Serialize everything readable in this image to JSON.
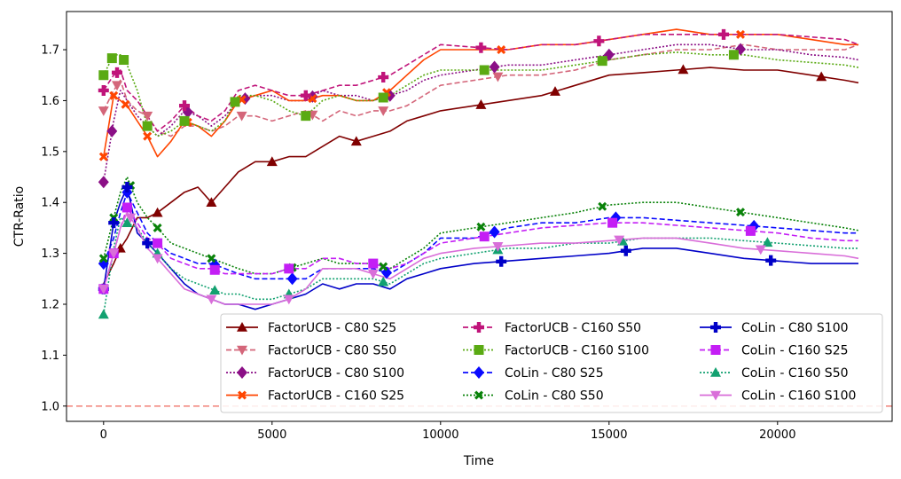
{
  "chart_data": {
    "type": "line",
    "title": "",
    "xlabel": "Time",
    "ylabel": "CTR-Ratio",
    "xlim": [
      -1100,
      23400
    ],
    "ylim": [
      0.97,
      1.775
    ],
    "xticks": [
      0,
      5000,
      10000,
      15000,
      20000
    ],
    "yticks": [
      1.0,
      1.1,
      1.2,
      1.3,
      1.4,
      1.5,
      1.6,
      1.7
    ],
    "xtick_labels": [
      "0",
      "5000",
      "10000",
      "15000",
      "20000"
    ],
    "ytick_labels": [
      "1.0",
      "1.1",
      "1.2",
      "1.3",
      "1.4",
      "1.5",
      "1.6",
      "1.7"
    ],
    "grid": false,
    "legend_position": "lower-right",
    "legend_columns": 3,
    "reference_line": {
      "y": 1.0,
      "color": "#f28b82",
      "style": "dashed"
    },
    "series": [
      {
        "name": "FactorUCB - C80 S25",
        "color": "#800000",
        "dash": "solid",
        "marker": "triangle-up",
        "x": [
          0,
          300,
          500,
          700,
          1000,
          1300,
          1600,
          2000,
          2400,
          2800,
          3200,
          3600,
          4000,
          4500,
          5000,
          5500,
          6000,
          6500,
          7000,
          7500,
          8000,
          8500,
          9000,
          9500,
          10000,
          11000,
          12000,
          13000,
          14000,
          15000,
          16000,
          17000,
          18000,
          19000,
          20000,
          21000,
          22000,
          22400
        ],
        "y": [
          1.24,
          1.28,
          1.31,
          1.33,
          1.37,
          1.37,
          1.38,
          1.4,
          1.42,
          1.43,
          1.4,
          1.43,
          1.46,
          1.48,
          1.48,
          1.49,
          1.49,
          1.51,
          1.53,
          1.52,
          1.53,
          1.54,
          1.56,
          1.57,
          1.58,
          1.59,
          1.6,
          1.61,
          1.63,
          1.65,
          1.655,
          1.66,
          1.665,
          1.66,
          1.66,
          1.65,
          1.64,
          1.635
        ],
        "marker_x": [
          500,
          1600,
          3200,
          5000,
          7500,
          11200,
          13400,
          17200,
          21300
        ]
      },
      {
        "name": "FactorUCB - C80 S50",
        "color": "#d4667a",
        "dash": "dashed",
        "marker": "triangle-down",
        "x": [
          0,
          300,
          500,
          700,
          1000,
          1300,
          1600,
          2000,
          2400,
          2800,
          3200,
          3600,
          4000,
          4500,
          5000,
          5500,
          6000,
          6500,
          7000,
          7500,
          8000,
          8500,
          9000,
          9500,
          10000,
          11000,
          12000,
          13000,
          14000,
          15000,
          16000,
          17000,
          18000,
          19000,
          20000,
          21000,
          22000,
          22400
        ],
        "y": [
          1.58,
          1.62,
          1.64,
          1.6,
          1.58,
          1.57,
          1.54,
          1.53,
          1.55,
          1.55,
          1.54,
          1.55,
          1.57,
          1.57,
          1.56,
          1.57,
          1.58,
          1.56,
          1.58,
          1.57,
          1.58,
          1.58,
          1.59,
          1.61,
          1.63,
          1.64,
          1.65,
          1.65,
          1.66,
          1.68,
          1.69,
          1.7,
          1.7,
          1.71,
          1.7,
          1.7,
          1.7,
          1.71
        ],
        "marker_x": [
          0,
          400,
          1300,
          4100,
          6200,
          8300,
          11700
        ]
      },
      {
        "name": "FactorUCB - C80 S100",
        "color": "#8b0f86",
        "dash": "dotted",
        "marker": "diamond",
        "x": [
          0,
          300,
          500,
          700,
          1000,
          1300,
          1600,
          2000,
          2400,
          2800,
          3200,
          3600,
          4000,
          4500,
          5000,
          5500,
          6000,
          6500,
          7000,
          7500,
          8000,
          8500,
          9000,
          9500,
          10000,
          11000,
          12000,
          13000,
          14000,
          15000,
          16000,
          17000,
          18000,
          19000,
          20000,
          21000,
          22000,
          22400
        ],
        "y": [
          1.44,
          1.56,
          1.62,
          1.6,
          1.57,
          1.55,
          1.53,
          1.55,
          1.58,
          1.57,
          1.55,
          1.57,
          1.6,
          1.61,
          1.61,
          1.6,
          1.6,
          1.62,
          1.61,
          1.61,
          1.6,
          1.61,
          1.62,
          1.64,
          1.65,
          1.66,
          1.67,
          1.67,
          1.68,
          1.69,
          1.7,
          1.71,
          1.71,
          1.7,
          1.7,
          1.69,
          1.685,
          1.68
        ],
        "marker_x": [
          0,
          250,
          2500,
          4200,
          6200,
          8500,
          11600,
          15000,
          18900
        ]
      },
      {
        "name": "FactorUCB - C160 S25",
        "color": "#ff4500",
        "dash": "solid",
        "marker": "x",
        "x": [
          0,
          300,
          500,
          700,
          1000,
          1300,
          1600,
          2000,
          2400,
          2800,
          3200,
          3600,
          4000,
          4500,
          5000,
          5500,
          6000,
          6500,
          7000,
          7500,
          8000,
          8500,
          9000,
          9500,
          10000,
          11000,
          12000,
          13000,
          14000,
          15000,
          16000,
          17000,
          18000,
          19000,
          20000,
          21000,
          22000,
          22400
        ],
        "y": [
          1.49,
          1.61,
          1.6,
          1.59,
          1.56,
          1.53,
          1.49,
          1.52,
          1.56,
          1.55,
          1.53,
          1.56,
          1.6,
          1.61,
          1.62,
          1.6,
          1.6,
          1.61,
          1.61,
          1.6,
          1.6,
          1.62,
          1.65,
          1.68,
          1.7,
          1.7,
          1.7,
          1.71,
          1.71,
          1.72,
          1.73,
          1.74,
          1.73,
          1.73,
          1.73,
          1.72,
          1.71,
          1.71
        ],
        "marker_x": [
          0,
          300,
          650,
          1300,
          2500,
          4100,
          6200,
          8400,
          11800,
          18900
        ]
      },
      {
        "name": "FactorUCB - C160 S50",
        "color": "#c0147a",
        "dash": "dashed",
        "marker": "plus",
        "x": [
          0,
          300,
          500,
          700,
          1000,
          1300,
          1600,
          2000,
          2400,
          2800,
          3200,
          3600,
          4000,
          4500,
          5000,
          5500,
          6000,
          6500,
          7000,
          7500,
          8000,
          8500,
          9000,
          9500,
          10000,
          11000,
          12000,
          13000,
          14000,
          15000,
          16000,
          17000,
          18000,
          19000,
          20000,
          21000,
          22000,
          22400
        ],
        "y": [
          1.62,
          1.65,
          1.66,
          1.62,
          1.6,
          1.57,
          1.54,
          1.56,
          1.59,
          1.57,
          1.56,
          1.58,
          1.62,
          1.63,
          1.62,
          1.61,
          1.61,
          1.62,
          1.63,
          1.63,
          1.64,
          1.65,
          1.67,
          1.69,
          1.71,
          1.705,
          1.7,
          1.71,
          1.71,
          1.72,
          1.73,
          1.73,
          1.73,
          1.73,
          1.73,
          1.725,
          1.72,
          1.71
        ],
        "marker_x": [
          0,
          400,
          2400,
          6000,
          8300,
          11200,
          14700,
          18400
        ]
      },
      {
        "name": "FactorUCB - C160 S100",
        "color": "#5aaa13",
        "dash": "dotted",
        "marker": "square",
        "x": [
          0,
          300,
          500,
          700,
          1000,
          1300,
          1600,
          2000,
          2400,
          2800,
          3200,
          3600,
          4000,
          4500,
          5000,
          5500,
          6000,
          6500,
          7000,
          7500,
          8000,
          8500,
          9000,
          9500,
          10000,
          11000,
          12000,
          13000,
          14000,
          15000,
          16000,
          17000,
          18000,
          19000,
          20000,
          21000,
          22000,
          22400
        ],
        "y": [
          1.65,
          1.69,
          1.69,
          1.67,
          1.62,
          1.55,
          1.53,
          1.54,
          1.56,
          1.55,
          1.54,
          1.56,
          1.61,
          1.61,
          1.6,
          1.58,
          1.57,
          1.6,
          1.61,
          1.6,
          1.6,
          1.61,
          1.63,
          1.65,
          1.66,
          1.66,
          1.66,
          1.66,
          1.67,
          1.68,
          1.69,
          1.695,
          1.69,
          1.69,
          1.68,
          1.675,
          1.67,
          1.665
        ],
        "marker_x": [
          0,
          250,
          600,
          1300,
          2400,
          3900,
          6000,
          8300,
          11300,
          14800,
          18700
        ]
      },
      {
        "name": "CoLin - C80 S25",
        "color": "#0a0aff",
        "dash": "dashed",
        "marker": "diamond",
        "x": [
          0,
          300,
          500,
          700,
          1000,
          1300,
          1600,
          2000,
          2400,
          2800,
          3200,
          3600,
          4000,
          4500,
          5000,
          5500,
          6000,
          6500,
          7000,
          7500,
          8000,
          8500,
          9000,
          9500,
          10000,
          11000,
          12000,
          13000,
          14000,
          15000,
          16000,
          17000,
          18000,
          19000,
          20000,
          21000,
          22000,
          22400
        ],
        "y": [
          1.28,
          1.33,
          1.38,
          1.42,
          1.38,
          1.34,
          1.32,
          1.3,
          1.29,
          1.28,
          1.28,
          1.27,
          1.26,
          1.25,
          1.25,
          1.25,
          1.25,
          1.27,
          1.27,
          1.27,
          1.27,
          1.26,
          1.28,
          1.3,
          1.33,
          1.33,
          1.35,
          1.36,
          1.36,
          1.37,
          1.37,
          1.365,
          1.36,
          1.355,
          1.35,
          1.345,
          1.34,
          1.34
        ],
        "marker_x": [
          0,
          700,
          3300,
          5600,
          8400,
          11600,
          15200,
          19300
        ]
      },
      {
        "name": "CoLin - C80 S50",
        "color": "#098209",
        "dash": "dotted",
        "marker": "x",
        "x": [
          0,
          300,
          500,
          700,
          1000,
          1300,
          1600,
          2000,
          2400,
          2800,
          3200,
          3600,
          4000,
          4500,
          5000,
          5500,
          6000,
          6500,
          7000,
          7500,
          8000,
          8500,
          9000,
          9500,
          10000,
          11000,
          12000,
          13000,
          14000,
          15000,
          16000,
          17000,
          18000,
          19000,
          20000,
          21000,
          22000,
          22400
        ],
        "y": [
          1.29,
          1.37,
          1.42,
          1.45,
          1.4,
          1.37,
          1.35,
          1.32,
          1.31,
          1.3,
          1.29,
          1.28,
          1.27,
          1.26,
          1.26,
          1.27,
          1.28,
          1.29,
          1.28,
          1.28,
          1.28,
          1.27,
          1.29,
          1.31,
          1.34,
          1.35,
          1.36,
          1.37,
          1.38,
          1.395,
          1.4,
          1.4,
          1.39,
          1.38,
          1.37,
          1.36,
          1.35,
          1.345
        ],
        "marker_x": [
          0,
          300,
          800,
          1600,
          3200,
          5600,
          8300,
          11200,
          14800,
          18900
        ]
      },
      {
        "name": "CoLin - C80 S100",
        "color": "#0000c8",
        "dash": "solid",
        "marker": "plus",
        "x": [
          0,
          300,
          500,
          700,
          1000,
          1300,
          1600,
          2000,
          2400,
          2800,
          3200,
          3600,
          4000,
          4500,
          5000,
          5500,
          6000,
          6500,
          7000,
          7500,
          8000,
          8500,
          9000,
          9500,
          10000,
          11000,
          12000,
          13000,
          14000,
          15000,
          16000,
          17000,
          18000,
          19000,
          20000,
          21000,
          22000,
          22400
        ],
        "y": [
          1.23,
          1.36,
          1.4,
          1.43,
          1.34,
          1.32,
          1.3,
          1.27,
          1.24,
          1.22,
          1.21,
          1.2,
          1.2,
          1.19,
          1.2,
          1.21,
          1.22,
          1.24,
          1.23,
          1.24,
          1.24,
          1.23,
          1.25,
          1.26,
          1.27,
          1.28,
          1.285,
          1.29,
          1.295,
          1.3,
          1.31,
          1.31,
          1.3,
          1.29,
          1.285,
          1.28,
          1.28,
          1.28
        ],
        "marker_x": [
          0,
          300,
          700,
          1300,
          11800,
          15500,
          19800
        ]
      },
      {
        "name": "CoLin - C160 S25",
        "color": "#c41ef5",
        "dash": "dashed",
        "marker": "square",
        "x": [
          0,
          300,
          500,
          700,
          1000,
          1300,
          1600,
          2000,
          2400,
          2800,
          3200,
          3600,
          4000,
          4500,
          5000,
          5500,
          6000,
          6500,
          7000,
          7500,
          8000,
          8500,
          9000,
          9500,
          10000,
          11000,
          12000,
          13000,
          14000,
          15000,
          16000,
          17000,
          18000,
          19000,
          20000,
          21000,
          22000,
          22400
        ],
        "y": [
          1.23,
          1.3,
          1.35,
          1.39,
          1.36,
          1.33,
          1.32,
          1.29,
          1.28,
          1.27,
          1.27,
          1.26,
          1.26,
          1.26,
          1.26,
          1.27,
          1.27,
          1.29,
          1.29,
          1.28,
          1.28,
          1.27,
          1.28,
          1.3,
          1.32,
          1.33,
          1.34,
          1.35,
          1.355,
          1.36,
          1.36,
          1.355,
          1.35,
          1.345,
          1.34,
          1.33,
          1.325,
          1.325
        ],
        "marker_x": [
          0,
          300,
          700,
          1600,
          3300,
          5500,
          8000,
          11300,
          15100,
          19200
        ]
      },
      {
        "name": "CoLin - C160 S50",
        "color": "#12a170",
        "dash": "dotted",
        "marker": "triangle-up",
        "x": [
          0,
          300,
          500,
          700,
          1000,
          1300,
          1600,
          2000,
          2400,
          2800,
          3200,
          3600,
          4000,
          4500,
          5000,
          5500,
          6000,
          6500,
          7000,
          7500,
          8000,
          8500,
          9000,
          9500,
          10000,
          11000,
          12000,
          13000,
          14000,
          15000,
          16000,
          17000,
          18000,
          19000,
          20000,
          21000,
          22000,
          22400
        ],
        "y": [
          1.18,
          1.31,
          1.37,
          1.36,
          1.35,
          1.32,
          1.3,
          1.27,
          1.25,
          1.24,
          1.23,
          1.22,
          1.22,
          1.21,
          1.21,
          1.22,
          1.23,
          1.25,
          1.25,
          1.25,
          1.25,
          1.24,
          1.26,
          1.28,
          1.29,
          1.3,
          1.31,
          1.31,
          1.32,
          1.32,
          1.33,
          1.33,
          1.33,
          1.325,
          1.32,
          1.315,
          1.31,
          1.31
        ],
        "marker_x": [
          0,
          700,
          1600,
          3300,
          5500,
          8300,
          11700,
          15400,
          19700
        ]
      },
      {
        "name": "CoLin - C160 S100",
        "color": "#d96ed9",
        "dash": "solid",
        "marker": "triangle-down",
        "x": [
          0,
          300,
          500,
          700,
          1000,
          1300,
          1600,
          2000,
          2400,
          2800,
          3200,
          3600,
          4000,
          4500,
          5000,
          5500,
          6000,
          6500,
          7000,
          7500,
          8000,
          8500,
          9000,
          9500,
          10000,
          11000,
          12000,
          13000,
          14000,
          15000,
          16000,
          17000,
          18000,
          19000,
          20000,
          21000,
          22000,
          22400
        ],
        "y": [
          1.23,
          1.3,
          1.35,
          1.38,
          1.35,
          1.31,
          1.29,
          1.26,
          1.23,
          1.22,
          1.21,
          1.2,
          1.2,
          1.2,
          1.2,
          1.21,
          1.23,
          1.27,
          1.27,
          1.27,
          1.26,
          1.25,
          1.27,
          1.29,
          1.3,
          1.31,
          1.315,
          1.32,
          1.32,
          1.325,
          1.33,
          1.33,
          1.32,
          1.31,
          1.305,
          1.3,
          1.295,
          1.29
        ],
        "marker_x": [
          0,
          300,
          800,
          1600,
          3200,
          5500,
          8000,
          11700,
          15300,
          19500
        ]
      }
    ]
  }
}
